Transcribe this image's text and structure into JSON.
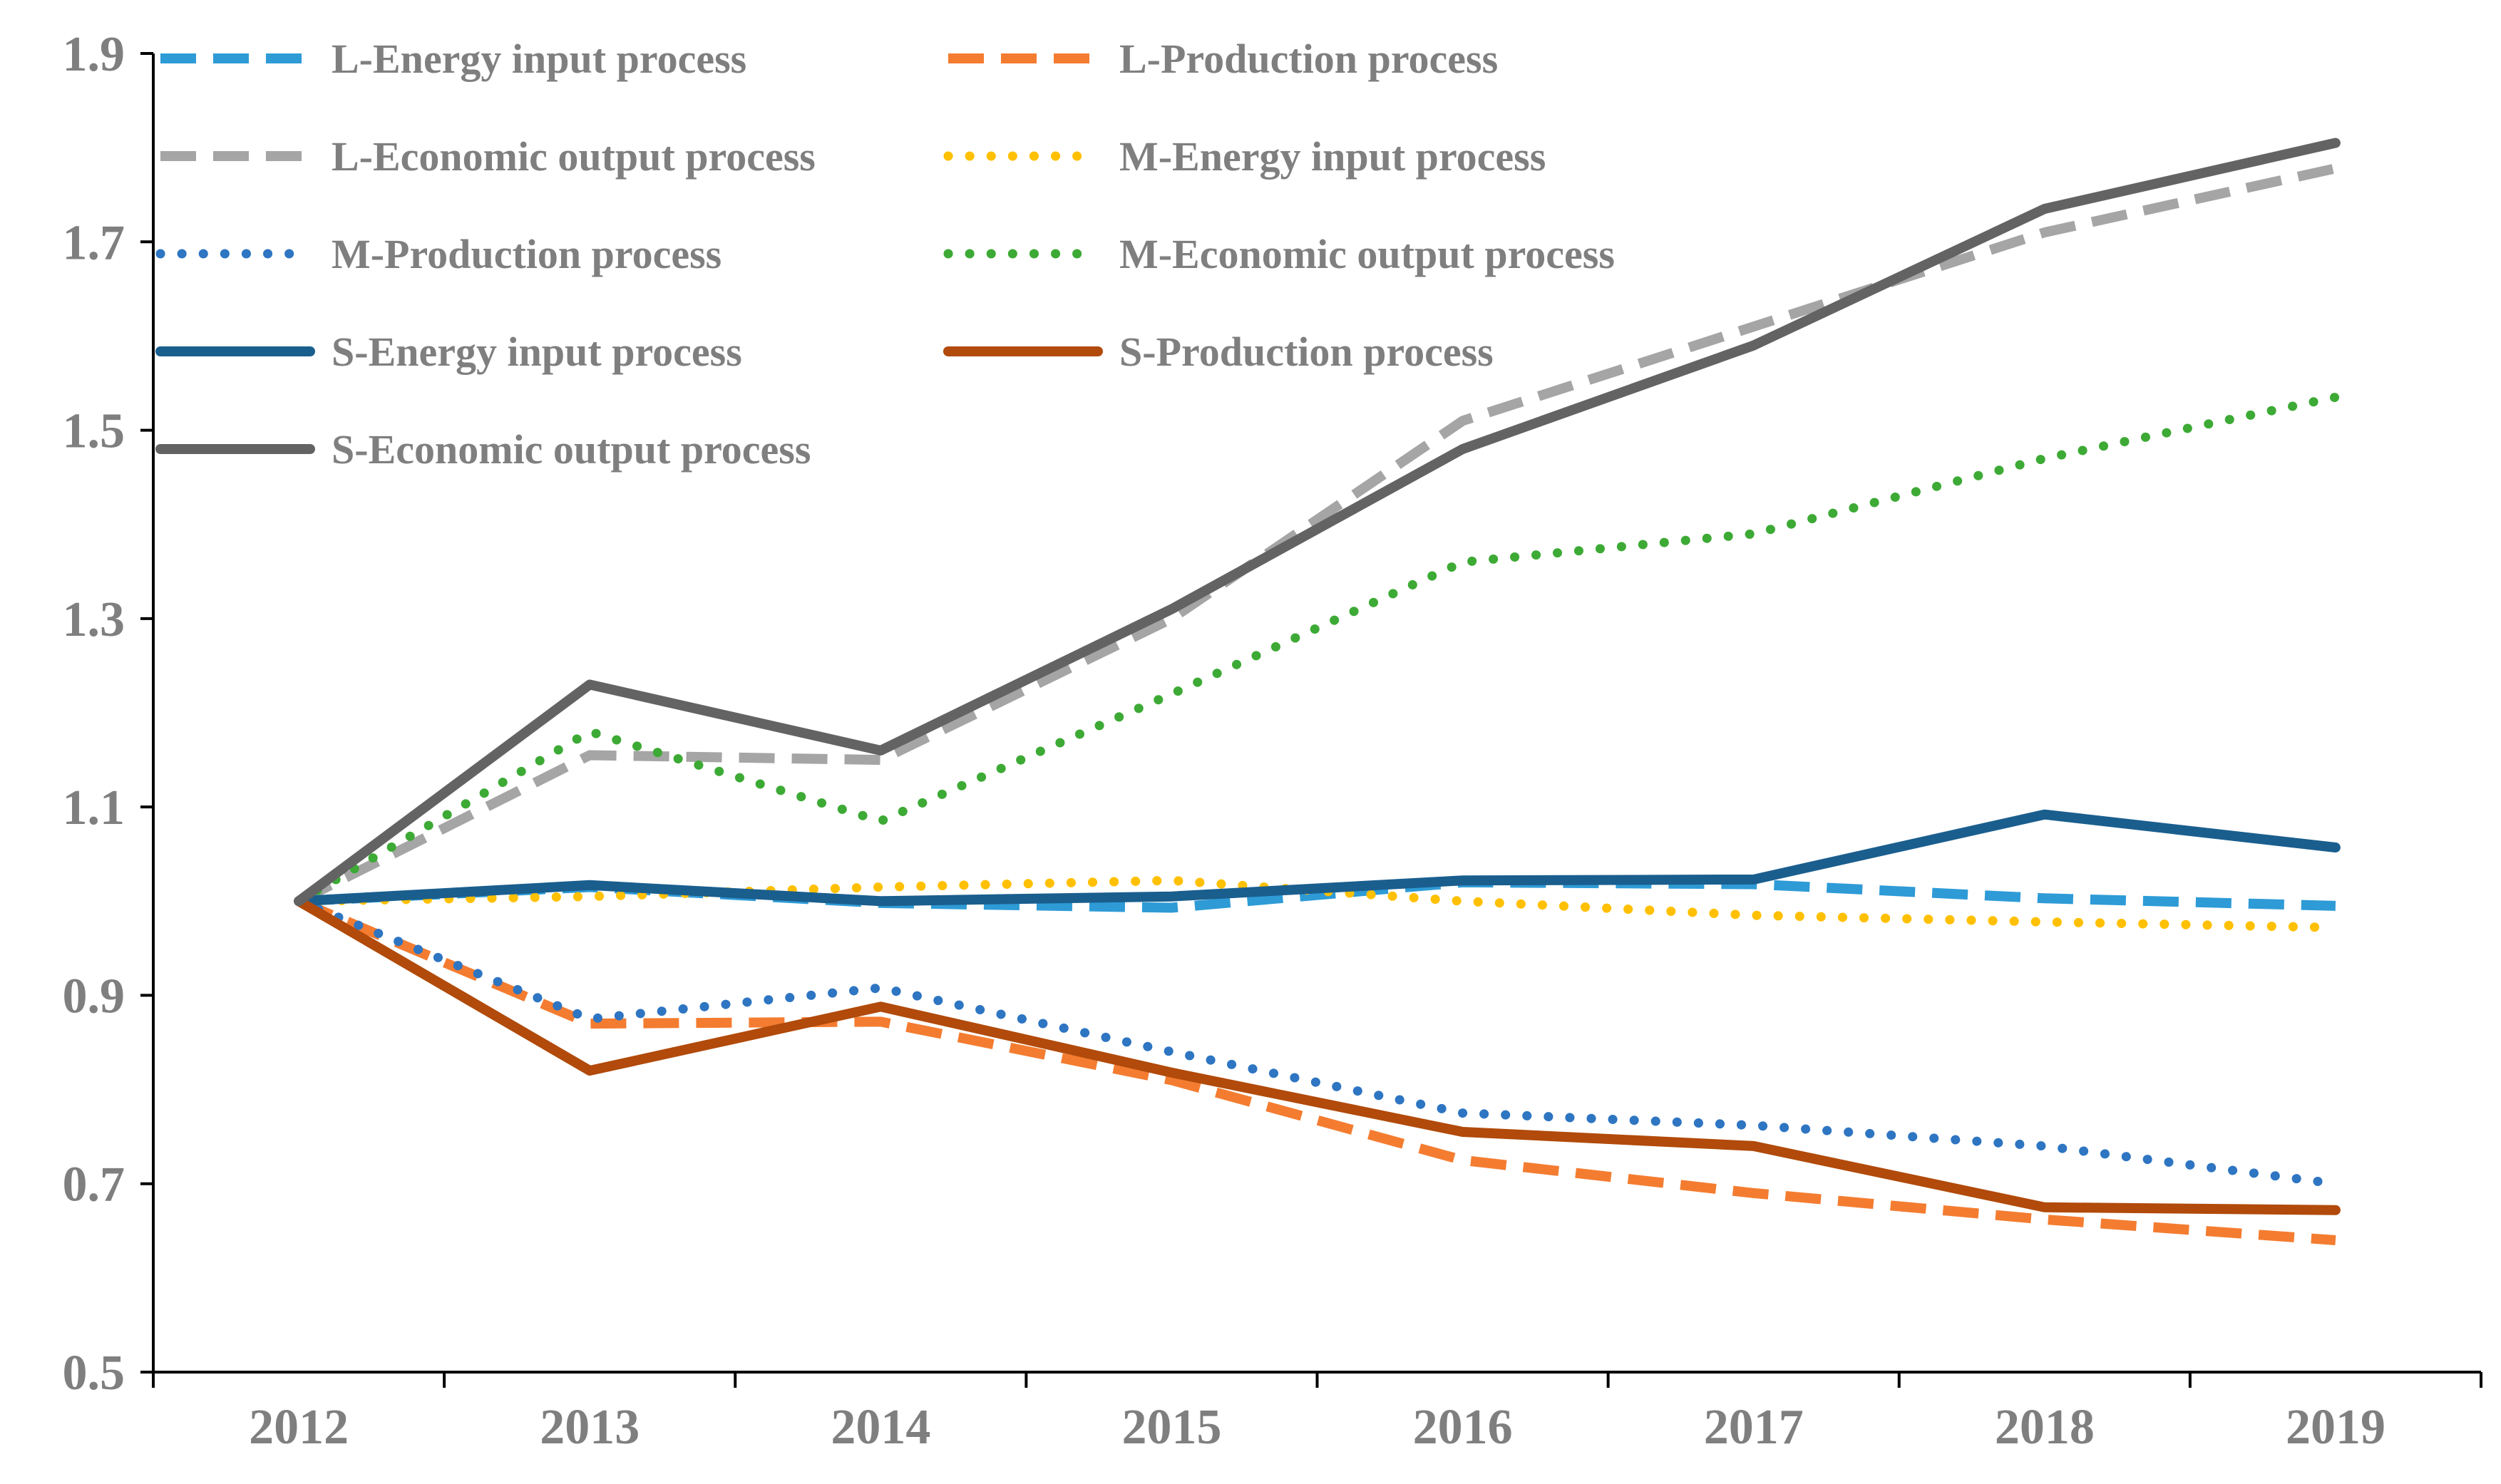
{
  "chart_data": {
    "type": "line",
    "title": "",
    "xlabel": "",
    "ylabel": "",
    "categories": [
      "2012",
      "2013",
      "2014",
      "2015",
      "2016",
      "2017",
      "2018",
      "2019"
    ],
    "ylim": [
      0.5,
      1.9
    ],
    "yticks": [
      "0.5",
      "0.7",
      "0.9",
      "1.1",
      "1.3",
      "1.5",
      "1.7",
      "1.9"
    ],
    "grid": false,
    "legend_position": "top-left",
    "series": [
      {
        "name": "L-Energy input process",
        "color": "#2e9bd6",
        "style": "dashed",
        "values": [
          1.0,
          1.015,
          0.998,
          0.993,
          1.02,
          1.018,
          1.003,
          0.995
        ]
      },
      {
        "name": "L-Production process",
        "color": "#f47c30",
        "style": "dashed",
        "values": [
          1.0,
          0.87,
          0.872,
          0.81,
          0.725,
          0.69,
          0.662,
          0.64
        ]
      },
      {
        "name": "L-Economic output process",
        "color": "#a5a5a5",
        "style": "dashed",
        "values": [
          1.0,
          1.155,
          1.15,
          1.3,
          1.51,
          1.61,
          1.71,
          1.778
        ]
      },
      {
        "name": "M-Energy input process",
        "color": "#ffc000",
        "style": "dotted",
        "values": [
          1.0,
          1.005,
          1.015,
          1.022,
          1.0,
          0.985,
          0.978,
          0.972
        ]
      },
      {
        "name": "M-Production process",
        "color": "#2e75c2",
        "style": "dotted",
        "values": [
          1.0,
          0.875,
          0.908,
          0.84,
          0.775,
          0.762,
          0.74,
          0.7
        ]
      },
      {
        "name": "M-Economic output process",
        "color": "#3daa35",
        "style": "dotted",
        "values": [
          1.0,
          1.18,
          1.085,
          1.22,
          1.36,
          1.39,
          1.47,
          1.535
        ]
      },
      {
        "name": "S-Energy input process",
        "color": "#1a5e8e",
        "style": "solid",
        "values": [
          1.0,
          1.017,
          1.0,
          1.005,
          1.022,
          1.023,
          1.092,
          1.057
        ]
      },
      {
        "name": "S-Production process",
        "color": "#b14a0a",
        "style": "solid",
        "values": [
          1.0,
          0.82,
          0.888,
          0.818,
          0.755,
          0.74,
          0.675,
          0.672
        ]
      },
      {
        "name": "S-Economic output process",
        "color": "#636363",
        "style": "solid",
        "values": [
          1.0,
          1.23,
          1.16,
          1.31,
          1.48,
          1.59,
          1.735,
          1.805
        ]
      }
    ]
  }
}
